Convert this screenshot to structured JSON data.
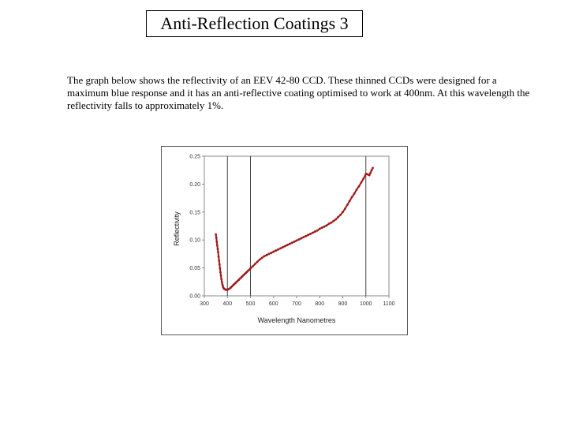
{
  "slide": {
    "title": "Anti-Reflection Coatings 3",
    "description": "The graph below shows the reflectivity of an EEV 42-80 CCD. These thinned CCDs were designed for a maximum blue response and it has an anti-reflective coating  optimised to work at 400nm. At this wavelength the reflectivity falls to approximately 1%."
  },
  "chart_data": {
    "type": "line",
    "title": "",
    "xlabel": "Wavelength Nanometres",
    "ylabel": "Reflectivity",
    "xlim": [
      300,
      1100
    ],
    "ylim": [
      0,
      0.25
    ],
    "xticks": [
      "300",
      "400",
      "500",
      "600",
      "700",
      "800",
      "900",
      "1000",
      "1100"
    ],
    "yticks": [
      "0.00",
      "0.05",
      "0.10",
      "0.15",
      "0.20",
      "0.25"
    ],
    "x_gridlines": [
      400,
      500,
      1000
    ],
    "line_color": "#a01818",
    "series": [
      {
        "x": [
          350,
          352,
          354,
          356,
          358,
          360,
          362,
          364,
          366,
          368,
          370,
          372,
          374,
          376,
          378,
          380,
          382,
          385,
          388,
          392,
          396,
          400,
          405,
          410,
          415,
          420,
          425,
          430,
          435,
          440,
          445,
          450,
          455,
          460,
          465,
          470,
          475,
          480,
          485,
          490,
          495,
          500,
          510,
          520,
          530,
          540,
          550,
          560,
          570,
          580,
          590,
          600,
          610,
          620,
          630,
          640,
          650,
          660,
          670,
          680,
          690,
          700,
          710,
          720,
          730,
          740,
          750,
          760,
          770,
          780,
          790,
          800,
          810,
          820,
          830,
          840,
          850,
          860,
          870,
          880,
          890,
          900,
          910,
          920,
          930,
          940,
          950,
          960,
          970,
          980,
          990,
          1000,
          1005,
          1010,
          1015,
          1020,
          1025,
          1030
        ],
        "y": [
          0.11,
          0.104,
          0.097,
          0.09,
          0.084,
          0.078,
          0.07,
          0.063,
          0.056,
          0.049,
          0.042,
          0.036,
          0.03,
          0.025,
          0.021,
          0.018,
          0.015,
          0.013,
          0.012,
          0.011,
          0.011,
          0.011,
          0.012,
          0.013,
          0.015,
          0.017,
          0.019,
          0.021,
          0.023,
          0.025,
          0.027,
          0.029,
          0.031,
          0.033,
          0.035,
          0.037,
          0.039,
          0.041,
          0.043,
          0.045,
          0.047,
          0.049,
          0.053,
          0.057,
          0.061,
          0.065,
          0.068,
          0.071,
          0.073,
          0.075,
          0.077,
          0.079,
          0.081,
          0.083,
          0.085,
          0.087,
          0.089,
          0.091,
          0.093,
          0.095,
          0.097,
          0.099,
          0.101,
          0.103,
          0.105,
          0.107,
          0.109,
          0.111,
          0.113,
          0.115,
          0.117,
          0.12,
          0.122,
          0.124,
          0.126,
          0.129,
          0.131,
          0.134,
          0.137,
          0.141,
          0.145,
          0.15,
          0.156,
          0.163,
          0.17,
          0.177,
          0.183,
          0.19,
          0.196,
          0.203,
          0.21,
          0.218,
          0.218,
          0.217,
          0.216,
          0.22,
          0.225,
          0.229
        ]
      }
    ]
  }
}
